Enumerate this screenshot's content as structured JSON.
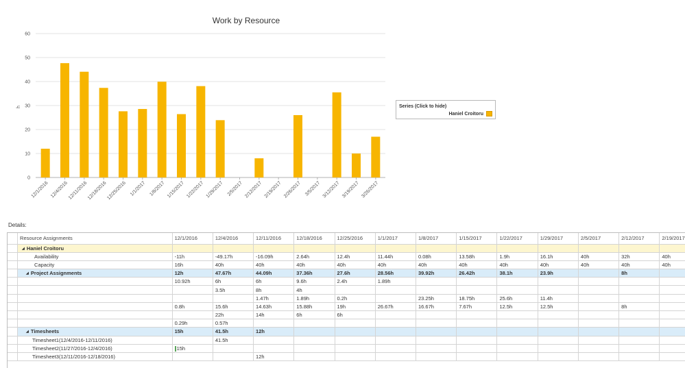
{
  "chart_data": {
    "type": "bar",
    "title": "Work by Resource",
    "ylabel": "h",
    "xlabel": "",
    "ylim": [
      0,
      60
    ],
    "yticks": [
      0,
      10,
      20,
      30,
      40,
      50,
      60
    ],
    "categories": [
      "12/1/2016",
      "12/4/2016",
      "12/11/2016",
      "12/18/2016",
      "12/25/2016",
      "1/1/2017",
      "1/8/2017",
      "1/15/2017",
      "1/22/2017",
      "1/29/2017",
      "2/5/2017",
      "2/12/2017",
      "2/19/2017",
      "2/26/2017",
      "3/5/2017",
      "3/12/2017",
      "3/19/2017",
      "3/26/2017"
    ],
    "series": [
      {
        "name": "Haniel Croitoru",
        "color": "#f7b500",
        "values": [
          12,
          47.67,
          44.09,
          37.36,
          27.6,
          28.56,
          39.92,
          26.42,
          38.1,
          23.9,
          0,
          8,
          0,
          26,
          0,
          35.5,
          10,
          17
        ]
      }
    ],
    "grid": true,
    "legend_position": "right"
  },
  "legend": {
    "title": "Series (Click to hide)",
    "item": "Haniel Croitoru"
  },
  "details": {
    "label": "Details:",
    "header": "Resource Assignments",
    "dates": [
      "12/1/2016",
      "12/4/2016",
      "12/11/2016",
      "12/18/2016",
      "12/25/2016",
      "1/1/2017",
      "1/8/2017",
      "1/15/2017",
      "1/22/2017",
      "1/29/2017",
      "2/5/2017",
      "2/12/2017",
      "2/19/2017",
      "2/2"
    ],
    "rows": [
      {
        "type": "resource",
        "label": "Haniel Croitoru",
        "indent": 1,
        "caret": true,
        "cells": [
          "",
          "",
          "",
          "",
          "",
          "",
          "",
          "",
          "",
          "",
          "",
          "",
          "",
          ""
        ]
      },
      {
        "type": "normal",
        "label": "Availability",
        "indent": 4,
        "cells": [
          "-11h",
          "-49.17h",
          "-16.09h",
          "2.64h",
          "12.4h",
          "11.44h",
          "0.08h",
          "13.58h",
          "1.9h",
          "16.1h",
          "40h",
          "32h",
          "40h",
          "14h"
        ]
      },
      {
        "type": "normal",
        "label": "Capacity",
        "indent": 4,
        "cells": [
          "16h",
          "40h",
          "40h",
          "40h",
          "40h",
          "40h",
          "40h",
          "40h",
          "40h",
          "40h",
          "40h",
          "40h",
          "40h",
          "40h"
        ]
      },
      {
        "type": "group",
        "label": "Project Assignments",
        "indent": 2,
        "caret": true,
        "cells": [
          "12h",
          "47.67h",
          "44.09h",
          "37.36h",
          "27.6h",
          "28.56h",
          "39.92h",
          "26.42h",
          "38.1h",
          "23.9h",
          "",
          "8h",
          "",
          "26h"
        ]
      },
      {
        "type": "normal",
        "label": "",
        "indent": 3,
        "cells": [
          "10.92h",
          "6h",
          "6h",
          "9.6h",
          "2.4h",
          "1.89h",
          "",
          "",
          "",
          "",
          "",
          "",
          "",
          ""
        ]
      },
      {
        "type": "normal",
        "label": "",
        "indent": 3,
        "cells": [
          "",
          "3.5h",
          "8h",
          "4h",
          "",
          "",
          "",
          "",
          "",
          "",
          "",
          "",
          "",
          ""
        ]
      },
      {
        "type": "normal",
        "label": "",
        "indent": 3,
        "cells": [
          "",
          "",
          "1.47h",
          "1.89h",
          "0.2h",
          "",
          "23.25h",
          "18.75h",
          "25.6h",
          "11.4h",
          "",
          "",
          "",
          ""
        ]
      },
      {
        "type": "normal",
        "label": "",
        "indent": 3,
        "cells": [
          "0.8h",
          "15.6h",
          "14.63h",
          "15.88h",
          "19h",
          "26.67h",
          "16.67h",
          "7.67h",
          "12.5h",
          "12.5h",
          "",
          "8h",
          "",
          "26h"
        ]
      },
      {
        "type": "normal",
        "label": "",
        "indent": 3,
        "cells": [
          "",
          "22h",
          "14h",
          "6h",
          "6h",
          "",
          "",
          "",
          "",
          "",
          "",
          "",
          "",
          ""
        ]
      },
      {
        "type": "normal",
        "label": "",
        "indent": 3,
        "cells": [
          "0.29h",
          "0.57h",
          "",
          "",
          "",
          "",
          "",
          "",
          "",
          "",
          "",
          "",
          "",
          ""
        ]
      },
      {
        "type": "group",
        "label": "Timesheets",
        "indent": 2,
        "caret": true,
        "cells": [
          "15h",
          "41.5h",
          "12h",
          "",
          "",
          "",
          "",
          "",
          "",
          "",
          "",
          "",
          "",
          ""
        ]
      },
      {
        "type": "normal",
        "label": "Timesheet1(12/4/2016-12/11/2016)",
        "indent": 3,
        "cells": [
          "",
          "41.5h",
          "",
          "",
          "",
          "",
          "",
          "",
          "",
          "",
          "",
          "",
          "",
          ""
        ]
      },
      {
        "type": "normal",
        "label": "Timesheet2(11/27/2016-12/4/2016)",
        "indent": 3,
        "mark": true,
        "cells": [
          "15h",
          "",
          "",
          "",
          "",
          "",
          "",
          "",
          "",
          "",
          "",
          "",
          "",
          ""
        ]
      },
      {
        "type": "normal",
        "label": "Timesheet3(12/11/2016-12/18/2016)",
        "indent": 3,
        "cells": [
          "",
          "",
          "12h",
          "",
          "",
          "",
          "",
          "",
          "",
          "",
          "",
          "",
          "",
          ""
        ]
      }
    ]
  }
}
